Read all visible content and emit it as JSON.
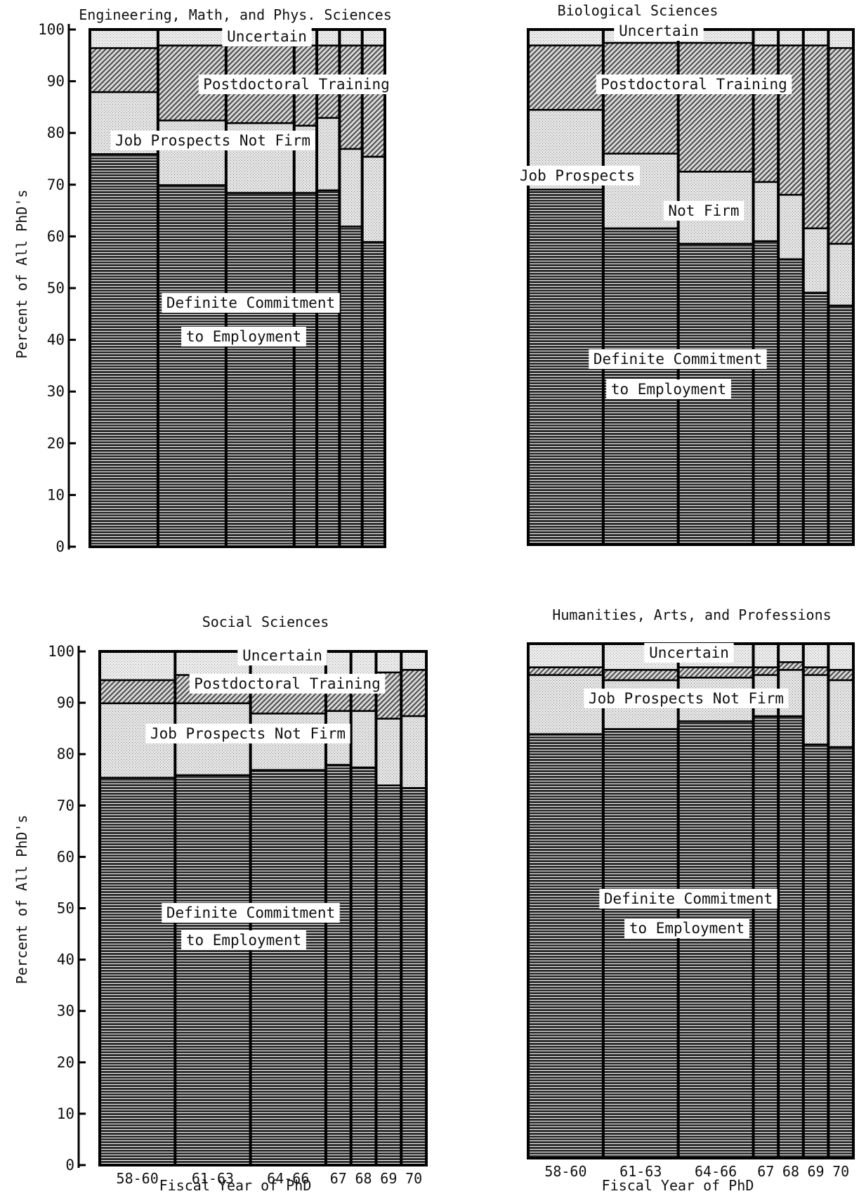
{
  "y_axis_label": "Percent of All PhD's",
  "x_axis_label": "Fiscal Year of PhD",
  "y_ticks": [
    "0",
    "10",
    "20",
    "30",
    "40",
    "50",
    "60",
    "70",
    "80",
    "90",
    "100"
  ],
  "x_tick_labels": [
    "58-60",
    "61-63",
    "64-66",
    "67",
    "68",
    "69",
    "70"
  ],
  "category_labels": {
    "uncertain": "Uncertain",
    "postdoc": "Postdoctoral Training",
    "job_prospects_full": "Job Prospects Not Firm",
    "job_prospects_1": "Job Prospects",
    "job_prospects_2": "Not Firm",
    "definite_1": "Definite Commitment",
    "definite_2": "to Employment"
  },
  "colors": {
    "definite": "#2f2f2f",
    "job_prospects": "#cfcfcf",
    "postdoc": "#6a6a6a",
    "uncertain": "#d9d9d9",
    "divider": "#000000",
    "background": "#ffffff"
  },
  "chart_data": [
    {
      "type": "bar",
      "stacked": true,
      "title": "Engineering, Math, and Phys. Sciences",
      "categories": [
        "58-60",
        "61-63",
        "64-66",
        "67",
        "68",
        "69",
        "70"
      ],
      "ylim": [
        0,
        100
      ],
      "ylabel": "Percent of All PhD's",
      "xlabel": "",
      "series": [
        {
          "name": "Definite Commitment to Employment",
          "values": [
            76,
            70,
            68.5,
            68.5,
            69,
            62,
            59
          ]
        },
        {
          "name": "Job Prospects Not Firm",
          "values": [
            12,
            12.5,
            13.5,
            13,
            14,
            15,
            16.5
          ]
        },
        {
          "name": "Postdoctoral Training",
          "values": [
            8.5,
            14.5,
            15,
            15.5,
            14,
            20,
            21.5
          ]
        },
        {
          "name": "Uncertain",
          "values": [
            3.5,
            3,
            3,
            3,
            3,
            3,
            3
          ]
        }
      ]
    },
    {
      "type": "bar",
      "stacked": true,
      "title": "Biological Sciences",
      "categories": [
        "58-60",
        "61-63",
        "64-66",
        "67",
        "68",
        "69",
        "70"
      ],
      "ylim": [
        0,
        100
      ],
      "ylabel": "",
      "xlabel": "",
      "series": [
        {
          "name": "Definite Commitment to Employment",
          "values": [
            69,
            61.5,
            58.5,
            59,
            55.5,
            49,
            46.5
          ]
        },
        {
          "name": "Job Prospects Not Firm",
          "values": [
            15.5,
            14.5,
            14,
            11.5,
            12.5,
            12.5,
            12
          ]
        },
        {
          "name": "Postdoctoral Training",
          "values": [
            12.5,
            21.5,
            25,
            26.5,
            29,
            35.5,
            38
          ]
        },
        {
          "name": "Uncertain",
          "values": [
            3,
            2.5,
            2.5,
            3,
            3,
            3,
            3.5
          ]
        }
      ]
    },
    {
      "type": "bar",
      "stacked": true,
      "title": "Social Sciences",
      "categories": [
        "58-60",
        "61-63",
        "64-66",
        "67",
        "68",
        "69",
        "70"
      ],
      "ylim": [
        0,
        100
      ],
      "ylabel": "Percent of All PhD's",
      "xlabel": "Fiscal Year of PhD",
      "series": [
        {
          "name": "Definite Commitment to Employment",
          "values": [
            75.5,
            76,
            77,
            78,
            77.5,
            74,
            73.5
          ]
        },
        {
          "name": "Job Prospects Not Firm",
          "values": [
            14.5,
            14,
            11,
            10.5,
            11,
            13,
            14
          ]
        },
        {
          "name": "Postdoctoral Training",
          "values": [
            4.5,
            5.5,
            7.5,
            6.5,
            6.5,
            9,
            9
          ]
        },
        {
          "name": "Uncertain",
          "values": [
            5.5,
            4.5,
            4.5,
            5,
            5,
            4,
            3.5
          ]
        }
      ]
    },
    {
      "type": "bar",
      "stacked": true,
      "title": "Humanities, Arts, and Professions",
      "categories": [
        "58-60",
        "61-63",
        "64-66",
        "67",
        "68",
        "69",
        "70"
      ],
      "ylim": [
        0,
        100
      ],
      "ylabel": "",
      "xlabel": "Fiscal Year of PhD",
      "series": [
        {
          "name": "Definite Commitment to Employment",
          "values": [
            82.5,
            83.5,
            85,
            86,
            86,
            80.5,
            80
          ]
        },
        {
          "name": "Job Prospects Not Firm",
          "values": [
            11.5,
            9.5,
            8.5,
            8,
            9,
            13.5,
            13
          ]
        },
        {
          "name": "Postdoctoral Training",
          "values": [
            1.5,
            2,
            2,
            1.5,
            1.5,
            1.5,
            2
          ]
        },
        {
          "name": "Uncertain",
          "values": [
            4.5,
            5,
            4.5,
            4.5,
            3.5,
            4.5,
            5
          ]
        }
      ]
    }
  ]
}
